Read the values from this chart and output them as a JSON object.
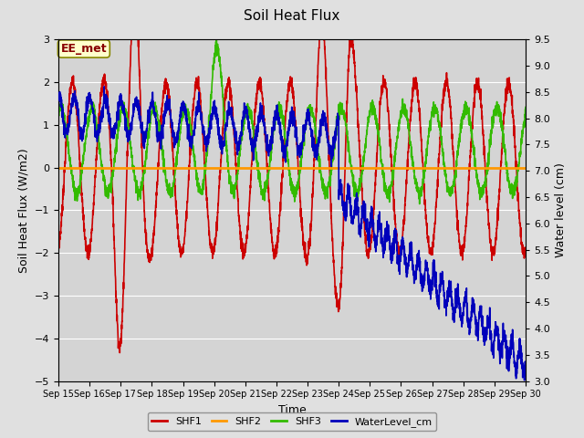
{
  "title": "Soil Heat Flux",
  "xlabel": "Time",
  "ylabel_left": "Soil Heat Flux (W/m2)",
  "ylabel_right": "Water level (cm)",
  "annotation": "EE_met",
  "fig_bg": "#e0e0e0",
  "plot_bg": "#d4d4d4",
  "ylim_left": [
    -5.0,
    3.0
  ],
  "ylim_right": [
    3.0,
    9.5
  ],
  "yticks_left": [
    -5.0,
    -4.0,
    -3.0,
    -2.0,
    -1.0,
    0.0,
    1.0,
    2.0,
    3.0
  ],
  "yticks_right": [
    3.0,
    3.5,
    4.0,
    4.5,
    5.0,
    5.5,
    6.0,
    6.5,
    7.0,
    7.5,
    8.0,
    8.5,
    9.0,
    9.5
  ],
  "xtick_labels": [
    "Sep 15",
    "Sep 16",
    "Sep 17",
    "Sep 18",
    "Sep 19",
    "Sep 20",
    "Sep 21",
    "Sep 22",
    "Sep 23",
    "Sep 24",
    "Sep 25",
    "Sep 26",
    "Sep 27",
    "Sep 28",
    "Sep 29",
    "Sep 30"
  ],
  "colors": {
    "SHF1": "#cc0000",
    "SHF2": "#ff9900",
    "SHF3": "#33bb00",
    "WaterLevel_cm": "#0000bb"
  },
  "linewidths": {
    "SHF1": 1.2,
    "SHF2": 2.0,
    "SHF3": 1.2,
    "WaterLevel_cm": 1.2
  },
  "n_days": 15
}
